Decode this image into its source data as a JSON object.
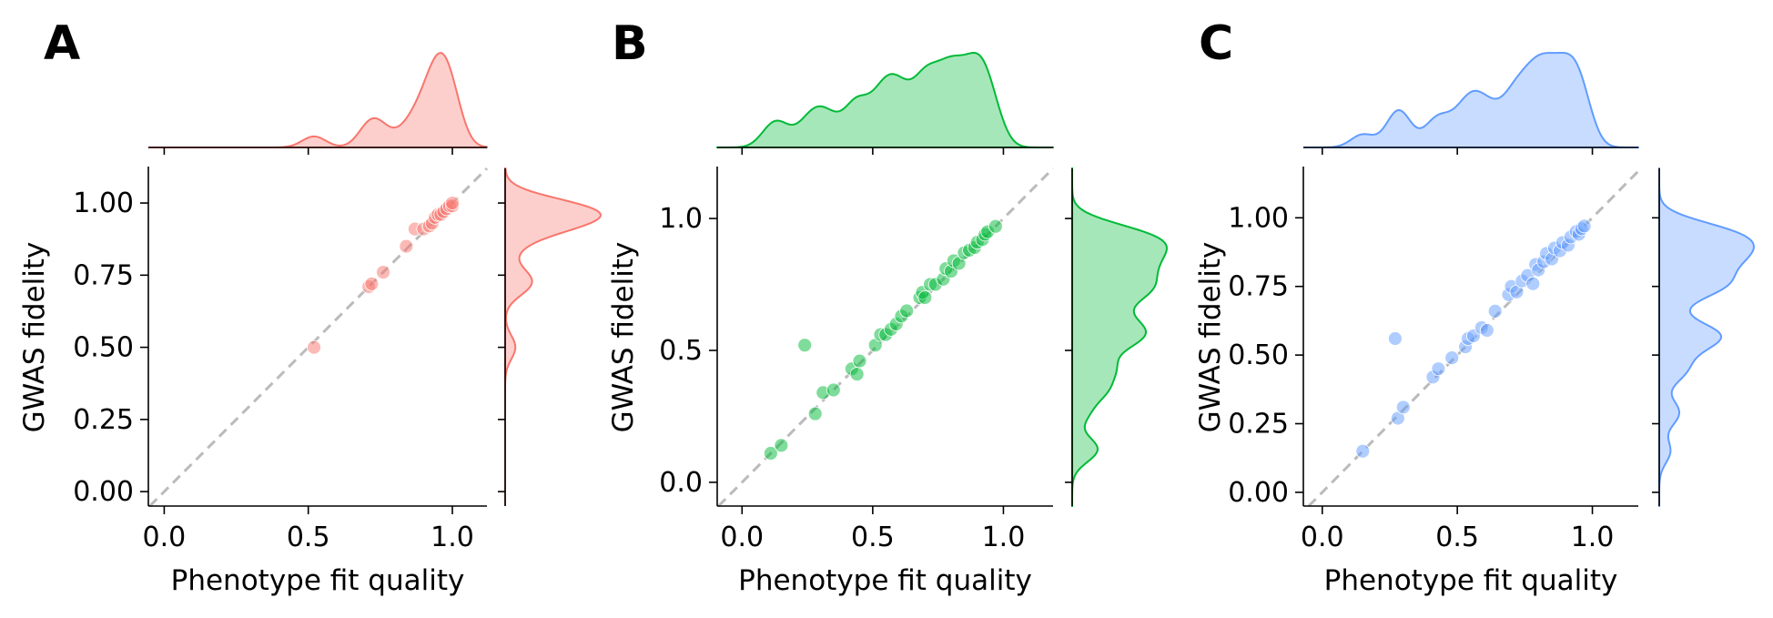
{
  "chart_data": [
    {
      "type": "scatter",
      "panel_label": "A",
      "xlabel": "Phenotype fit quality",
      "ylabel": "GWAS fidelity",
      "xlim": [
        -0.055,
        1.12
      ],
      "ylim": [
        -0.05,
        1.12
      ],
      "xticks": [
        {
          "value": 0.0,
          "label": "0.0"
        },
        {
          "value": 0.5,
          "label": "0.5"
        },
        {
          "value": 1.0,
          "label": "1.0"
        }
      ],
      "yticks": [
        {
          "value": 0.0,
          "label": "0.00"
        },
        {
          "value": 0.25,
          "label": "0.25"
        },
        {
          "value": 0.5,
          "label": "0.50"
        },
        {
          "value": 0.75,
          "label": "0.75"
        },
        {
          "value": 1.0,
          "label": "1.00"
        }
      ],
      "color": "#f8766d",
      "identity_line": true,
      "marginal_distributions": true,
      "grid": false,
      "points": [
        {
          "x": 0.52,
          "y": 0.5
        },
        {
          "x": 0.71,
          "y": 0.71
        },
        {
          "x": 0.72,
          "y": 0.72
        },
        {
          "x": 0.76,
          "y": 0.76
        },
        {
          "x": 0.84,
          "y": 0.85
        },
        {
          "x": 0.87,
          "y": 0.91
        },
        {
          "x": 0.9,
          "y": 0.91
        },
        {
          "x": 0.92,
          "y": 0.92
        },
        {
          "x": 0.93,
          "y": 0.93
        },
        {
          "x": 0.94,
          "y": 0.95
        },
        {
          "x": 0.95,
          "y": 0.96
        },
        {
          "x": 0.96,
          "y": 0.96
        },
        {
          "x": 0.97,
          "y": 0.97
        },
        {
          "x": 0.98,
          "y": 0.98
        },
        {
          "x": 0.99,
          "y": 0.99
        },
        {
          "x": 1.0,
          "y": 0.99
        },
        {
          "x": 1.0,
          "y": 1.0
        }
      ]
    },
    {
      "type": "scatter",
      "panel_label": "B",
      "xlabel": "Phenotype fit quality",
      "ylabel": "GWAS fidelity",
      "xlim": [
        -0.095,
        1.19
      ],
      "ylim": [
        -0.09,
        1.19
      ],
      "xticks": [
        {
          "value": 0.0,
          "label": "0.0"
        },
        {
          "value": 0.5,
          "label": "0.5"
        },
        {
          "value": 1.0,
          "label": "1.0"
        }
      ],
      "yticks": [
        {
          "value": 0.0,
          "label": "0.0"
        },
        {
          "value": 0.5,
          "label": "0.5"
        },
        {
          "value": 1.0,
          "label": "1.0"
        }
      ],
      "color": "#00ba38",
      "identity_line": true,
      "marginal_distributions": true,
      "grid": false,
      "points": [
        {
          "x": 0.11,
          "y": 0.11
        },
        {
          "x": 0.15,
          "y": 0.14
        },
        {
          "x": 0.24,
          "y": 0.52
        },
        {
          "x": 0.28,
          "y": 0.26
        },
        {
          "x": 0.31,
          "y": 0.34
        },
        {
          "x": 0.35,
          "y": 0.35
        },
        {
          "x": 0.42,
          "y": 0.43
        },
        {
          "x": 0.44,
          "y": 0.41
        },
        {
          "x": 0.45,
          "y": 0.46
        },
        {
          "x": 0.51,
          "y": 0.52
        },
        {
          "x": 0.53,
          "y": 0.56
        },
        {
          "x": 0.55,
          "y": 0.56
        },
        {
          "x": 0.57,
          "y": 0.58
        },
        {
          "x": 0.59,
          "y": 0.6
        },
        {
          "x": 0.61,
          "y": 0.63
        },
        {
          "x": 0.63,
          "y": 0.65
        },
        {
          "x": 0.68,
          "y": 0.7
        },
        {
          "x": 0.69,
          "y": 0.72
        },
        {
          "x": 0.7,
          "y": 0.7
        },
        {
          "x": 0.72,
          "y": 0.75
        },
        {
          "x": 0.74,
          "y": 0.75
        },
        {
          "x": 0.77,
          "y": 0.77
        },
        {
          "x": 0.78,
          "y": 0.81
        },
        {
          "x": 0.8,
          "y": 0.8
        },
        {
          "x": 0.81,
          "y": 0.84
        },
        {
          "x": 0.83,
          "y": 0.83
        },
        {
          "x": 0.85,
          "y": 0.87
        },
        {
          "x": 0.87,
          "y": 0.88
        },
        {
          "x": 0.89,
          "y": 0.89
        },
        {
          "x": 0.9,
          "y": 0.91
        },
        {
          "x": 0.92,
          "y": 0.92
        },
        {
          "x": 0.93,
          "y": 0.94
        },
        {
          "x": 0.94,
          "y": 0.95
        },
        {
          "x": 0.97,
          "y": 0.97
        }
      ]
    },
    {
      "type": "scatter",
      "panel_label": "C",
      "xlabel": "Phenotype fit quality",
      "ylabel": "GWAS fidelity",
      "xlim": [
        -0.07,
        1.17
      ],
      "ylim": [
        -0.05,
        1.18
      ],
      "xticks": [
        {
          "value": 0.0,
          "label": "0.0"
        },
        {
          "value": 0.5,
          "label": "0.5"
        },
        {
          "value": 1.0,
          "label": "1.0"
        }
      ],
      "yticks": [
        {
          "value": 0.0,
          "label": "0.00"
        },
        {
          "value": 0.25,
          "label": "0.25"
        },
        {
          "value": 0.5,
          "label": "0.50"
        },
        {
          "value": 0.75,
          "label": "0.75"
        },
        {
          "value": 1.0,
          "label": "1.00"
        }
      ],
      "color": "#619cff",
      "identity_line": true,
      "marginal_distributions": true,
      "grid": false,
      "points": [
        {
          "x": 0.15,
          "y": 0.15
        },
        {
          "x": 0.27,
          "y": 0.56
        },
        {
          "x": 0.28,
          "y": 0.27
        },
        {
          "x": 0.3,
          "y": 0.31
        },
        {
          "x": 0.41,
          "y": 0.42
        },
        {
          "x": 0.43,
          "y": 0.45
        },
        {
          "x": 0.48,
          "y": 0.49
        },
        {
          "x": 0.53,
          "y": 0.53
        },
        {
          "x": 0.54,
          "y": 0.56
        },
        {
          "x": 0.56,
          "y": 0.57
        },
        {
          "x": 0.59,
          "y": 0.6
        },
        {
          "x": 0.61,
          "y": 0.59
        },
        {
          "x": 0.64,
          "y": 0.66
        },
        {
          "x": 0.69,
          "y": 0.72
        },
        {
          "x": 0.7,
          "y": 0.75
        },
        {
          "x": 0.72,
          "y": 0.73
        },
        {
          "x": 0.74,
          "y": 0.77
        },
        {
          "x": 0.76,
          "y": 0.79
        },
        {
          "x": 0.78,
          "y": 0.76
        },
        {
          "x": 0.79,
          "y": 0.83
        },
        {
          "x": 0.8,
          "y": 0.81
        },
        {
          "x": 0.82,
          "y": 0.84
        },
        {
          "x": 0.83,
          "y": 0.87
        },
        {
          "x": 0.85,
          "y": 0.85
        },
        {
          "x": 0.86,
          "y": 0.89
        },
        {
          "x": 0.88,
          "y": 0.88
        },
        {
          "x": 0.89,
          "y": 0.91
        },
        {
          "x": 0.91,
          "y": 0.9
        },
        {
          "x": 0.92,
          "y": 0.93
        },
        {
          "x": 0.94,
          "y": 0.95
        },
        {
          "x": 0.95,
          "y": 0.94
        },
        {
          "x": 0.96,
          "y": 0.96
        },
        {
          "x": 0.97,
          "y": 0.97
        }
      ]
    }
  ]
}
